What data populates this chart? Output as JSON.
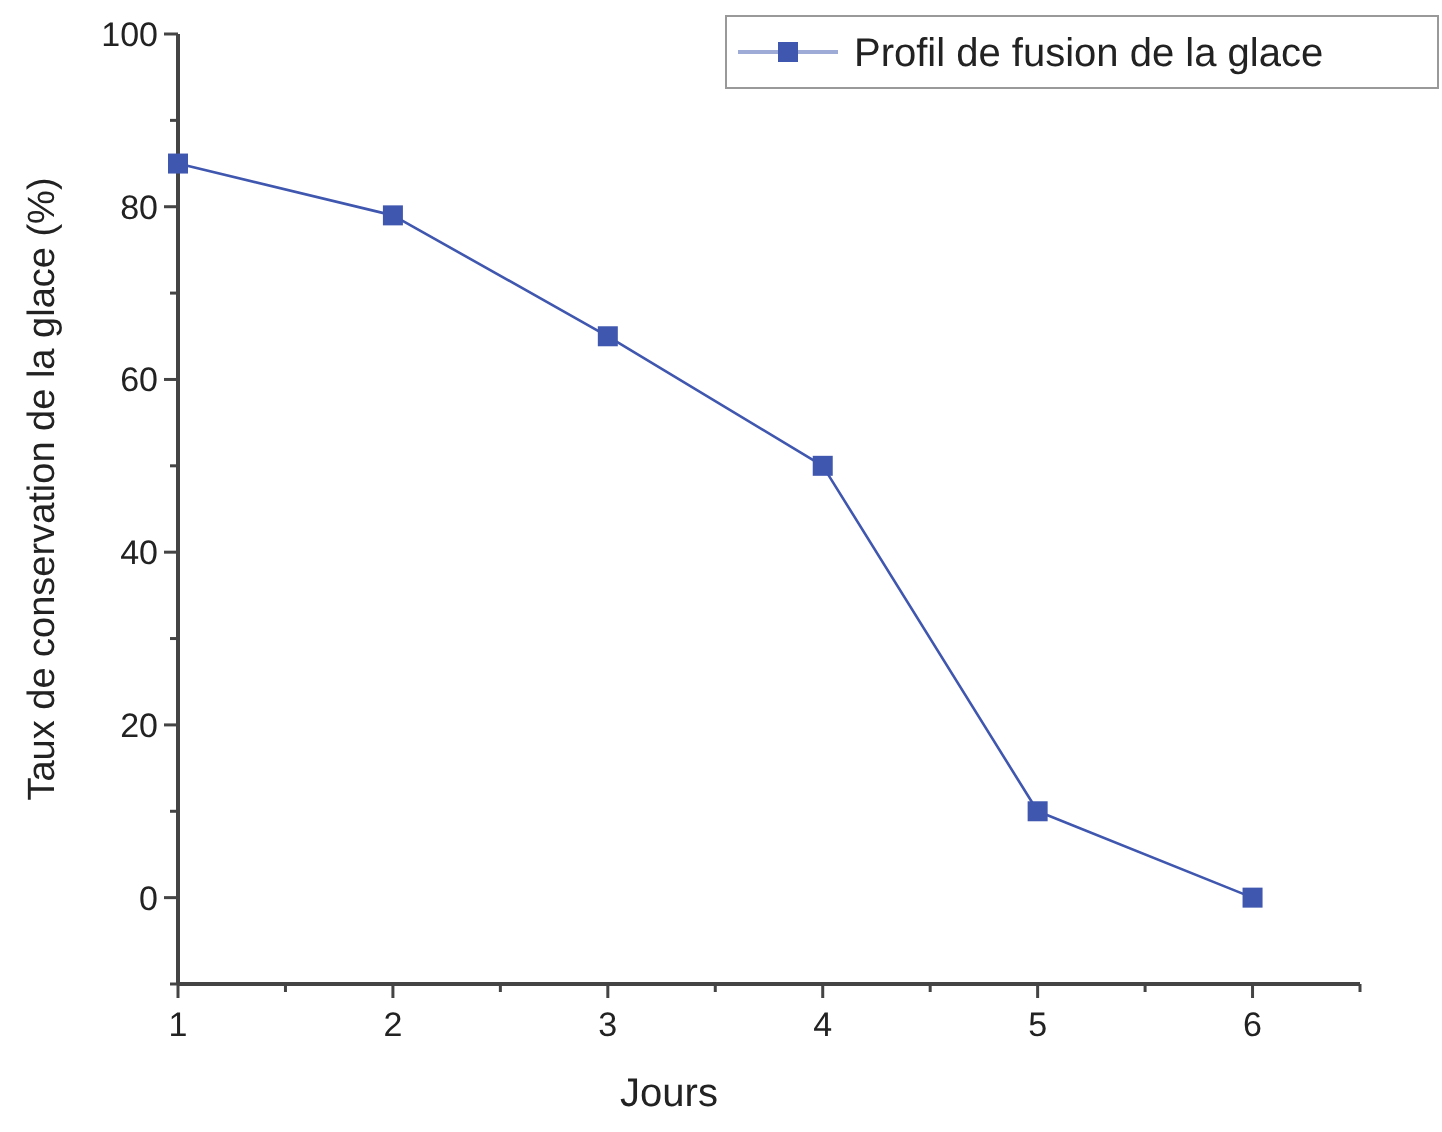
{
  "chart_data": {
    "type": "line",
    "xlabel": "Jours",
    "ylabel": "Taux de conservation de la glace (%)",
    "x": [
      1,
      2,
      3,
      4,
      5,
      6
    ],
    "series": [
      {
        "name": "Profil de fusion de la glace",
        "color": "#4057b0",
        "values": [
          85,
          79,
          65,
          50,
          10,
          0
        ]
      }
    ],
    "xlim": [
      1,
      6.5
    ],
    "xticks": [
      1,
      {
        "value": 1.5,
        "label": null
      },
      2,
      {
        "value": 2.5,
        "label": null
      },
      3,
      {
        "value": 3.5,
        "label": null
      },
      4,
      {
        "value": 4.5,
        "label": null
      },
      5,
      {
        "value": 5.5,
        "label": null
      },
      6,
      {
        "value": 6.5,
        "label": null
      }
    ],
    "ylim": [
      -10,
      100
    ],
    "yticks": [
      {
        "value": -10,
        "label": null
      },
      0,
      {
        "value": 10,
        "label": null
      },
      20,
      {
        "value": 30,
        "label": null
      },
      40,
      {
        "value": 50,
        "label": null
      },
      60,
      {
        "value": 70,
        "label": null
      },
      80,
      {
        "value": 90,
        "label": null
      },
      100
    ],
    "marker": "square",
    "line_style": "solid",
    "legend": "top right",
    "grid": false
  }
}
